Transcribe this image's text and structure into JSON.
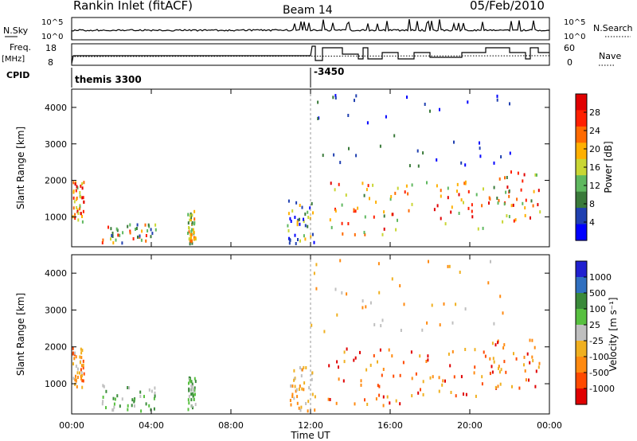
{
  "header": {
    "station": "Rankin Inlet (fitACF)",
    "beam": "Beam 14",
    "date": "05/Feb/2010"
  },
  "strip_labels": {
    "nsky": "N.Sky",
    "nsky_ticks": [
      "10^5",
      "10^0"
    ],
    "freq": "Freq.",
    "freq_unit": "[MHz]",
    "freq_ticks": [
      "18",
      "8"
    ],
    "cpid": "CPID",
    "nsearch": "N.Search",
    "nsearch_ticks": [
      "10^5",
      "10^0"
    ],
    "nave": "Nave",
    "nave_ticks": [
      "60",
      "0"
    ]
  },
  "cpid_labels": [
    {
      "time": 0.0,
      "text": "themis 3300"
    },
    {
      "time": 12.0,
      "text": "-3450"
    }
  ],
  "colors": {
    "power": [
      "#0000ff",
      "#2040b0",
      "#3a7a3a",
      "#5fb85f",
      "#c9d634",
      "#ffb000",
      "#ff6a00",
      "#ff2000",
      "#e00000"
    ],
    "velocity": [
      "#2020d0",
      "#3070c0",
      "#3a8a3a",
      "#58c040",
      "#bfbfbf",
      "#f0b020",
      "#ff8a10",
      "#ff4a00",
      "#e00000"
    ]
  },
  "chart_data": [
    {
      "type": "heatmap",
      "title": "",
      "ylabel": "Slant Range [km]",
      "xlabel": "",
      "x_ticks": [
        "00:00",
        "04:00",
        "08:00",
        "12:00",
        "16:00",
        "20:00",
        "00:00"
      ],
      "xlim_hours": [
        0,
        24
      ],
      "y_ticks": [
        1000,
        2000,
        3000,
        4000
      ],
      "ylim": [
        180,
        4500
      ],
      "colorbar": {
        "label": "Power [dB]",
        "ticks": [
          "4",
          "8",
          "12",
          "16",
          "20",
          "24",
          "28"
        ],
        "range": [
          0,
          30
        ]
      },
      "scatter_regions": [
        {
          "t": [
            0.0,
            0.6
          ],
          "r": [
            900,
            2000
          ],
          "level": [
            3,
            8
          ]
        },
        {
          "t": [
            1.5,
            4.2
          ],
          "r": [
            300,
            900
          ],
          "level": [
            1,
            7
          ]
        },
        {
          "t": [
            5.8,
            6.2
          ],
          "r": [
            300,
            1200
          ],
          "level": [
            2,
            6
          ]
        },
        {
          "t": [
            10.8,
            12.2
          ],
          "r": [
            300,
            1500
          ],
          "level": [
            0,
            5
          ]
        },
        {
          "t": [
            12.8,
            16.5
          ],
          "r": [
            400,
            2000
          ],
          "level": [
            2,
            8
          ]
        },
        {
          "t": [
            16.5,
            21.0
          ],
          "r": [
            700,
            2000
          ],
          "level": [
            3,
            8
          ]
        },
        {
          "t": [
            21.0,
            23.5
          ],
          "r": [
            900,
            2300
          ],
          "level": [
            2,
            8
          ]
        },
        {
          "t": [
            12.0,
            22.0
          ],
          "r": [
            2400,
            4400
          ],
          "level": [
            0,
            2
          ]
        }
      ]
    },
    {
      "type": "heatmap",
      "title": "",
      "ylabel": "Slant Range [km]",
      "xlabel": "Time UT",
      "x_ticks": [
        "00:00",
        "04:00",
        "08:00",
        "12:00",
        "16:00",
        "20:00",
        "00:00"
      ],
      "xlim_hours": [
        0,
        24
      ],
      "y_ticks": [
        1000,
        2000,
        3000,
        4000
      ],
      "ylim": [
        180,
        4500
      ],
      "colorbar": {
        "label": "Velocity [m s⁻¹]",
        "ticks": [
          "1000",
          "500",
          "100",
          "25",
          "-25",
          "-100",
          "-500",
          "-1000"
        ],
        "range": [
          -1000,
          1000
        ]
      },
      "scatter_regions": [
        {
          "t": [
            0.0,
            0.6
          ],
          "r": [
            900,
            2000
          ],
          "level": [
            4,
            7
          ]
        },
        {
          "t": [
            1.5,
            4.2
          ],
          "r": [
            300,
            1000
          ],
          "level": [
            2,
            4
          ]
        },
        {
          "t": [
            5.8,
            6.2
          ],
          "r": [
            300,
            1200
          ],
          "level": [
            2,
            4
          ]
        },
        {
          "t": [
            10.8,
            12.2
          ],
          "r": [
            300,
            1500
          ],
          "level": [
            4,
            6
          ]
        },
        {
          "t": [
            12.8,
            16.5
          ],
          "r": [
            400,
            2000
          ],
          "level": [
            5,
            8
          ]
        },
        {
          "t": [
            16.5,
            21.0
          ],
          "r": [
            700,
            2000
          ],
          "level": [
            5,
            8
          ]
        },
        {
          "t": [
            21.0,
            23.5
          ],
          "r": [
            900,
            2300
          ],
          "level": [
            5,
            8
          ]
        },
        {
          "t": [
            12.0,
            22.0
          ],
          "r": [
            2400,
            4400
          ],
          "level": [
            4,
            6
          ]
        }
      ]
    }
  ]
}
